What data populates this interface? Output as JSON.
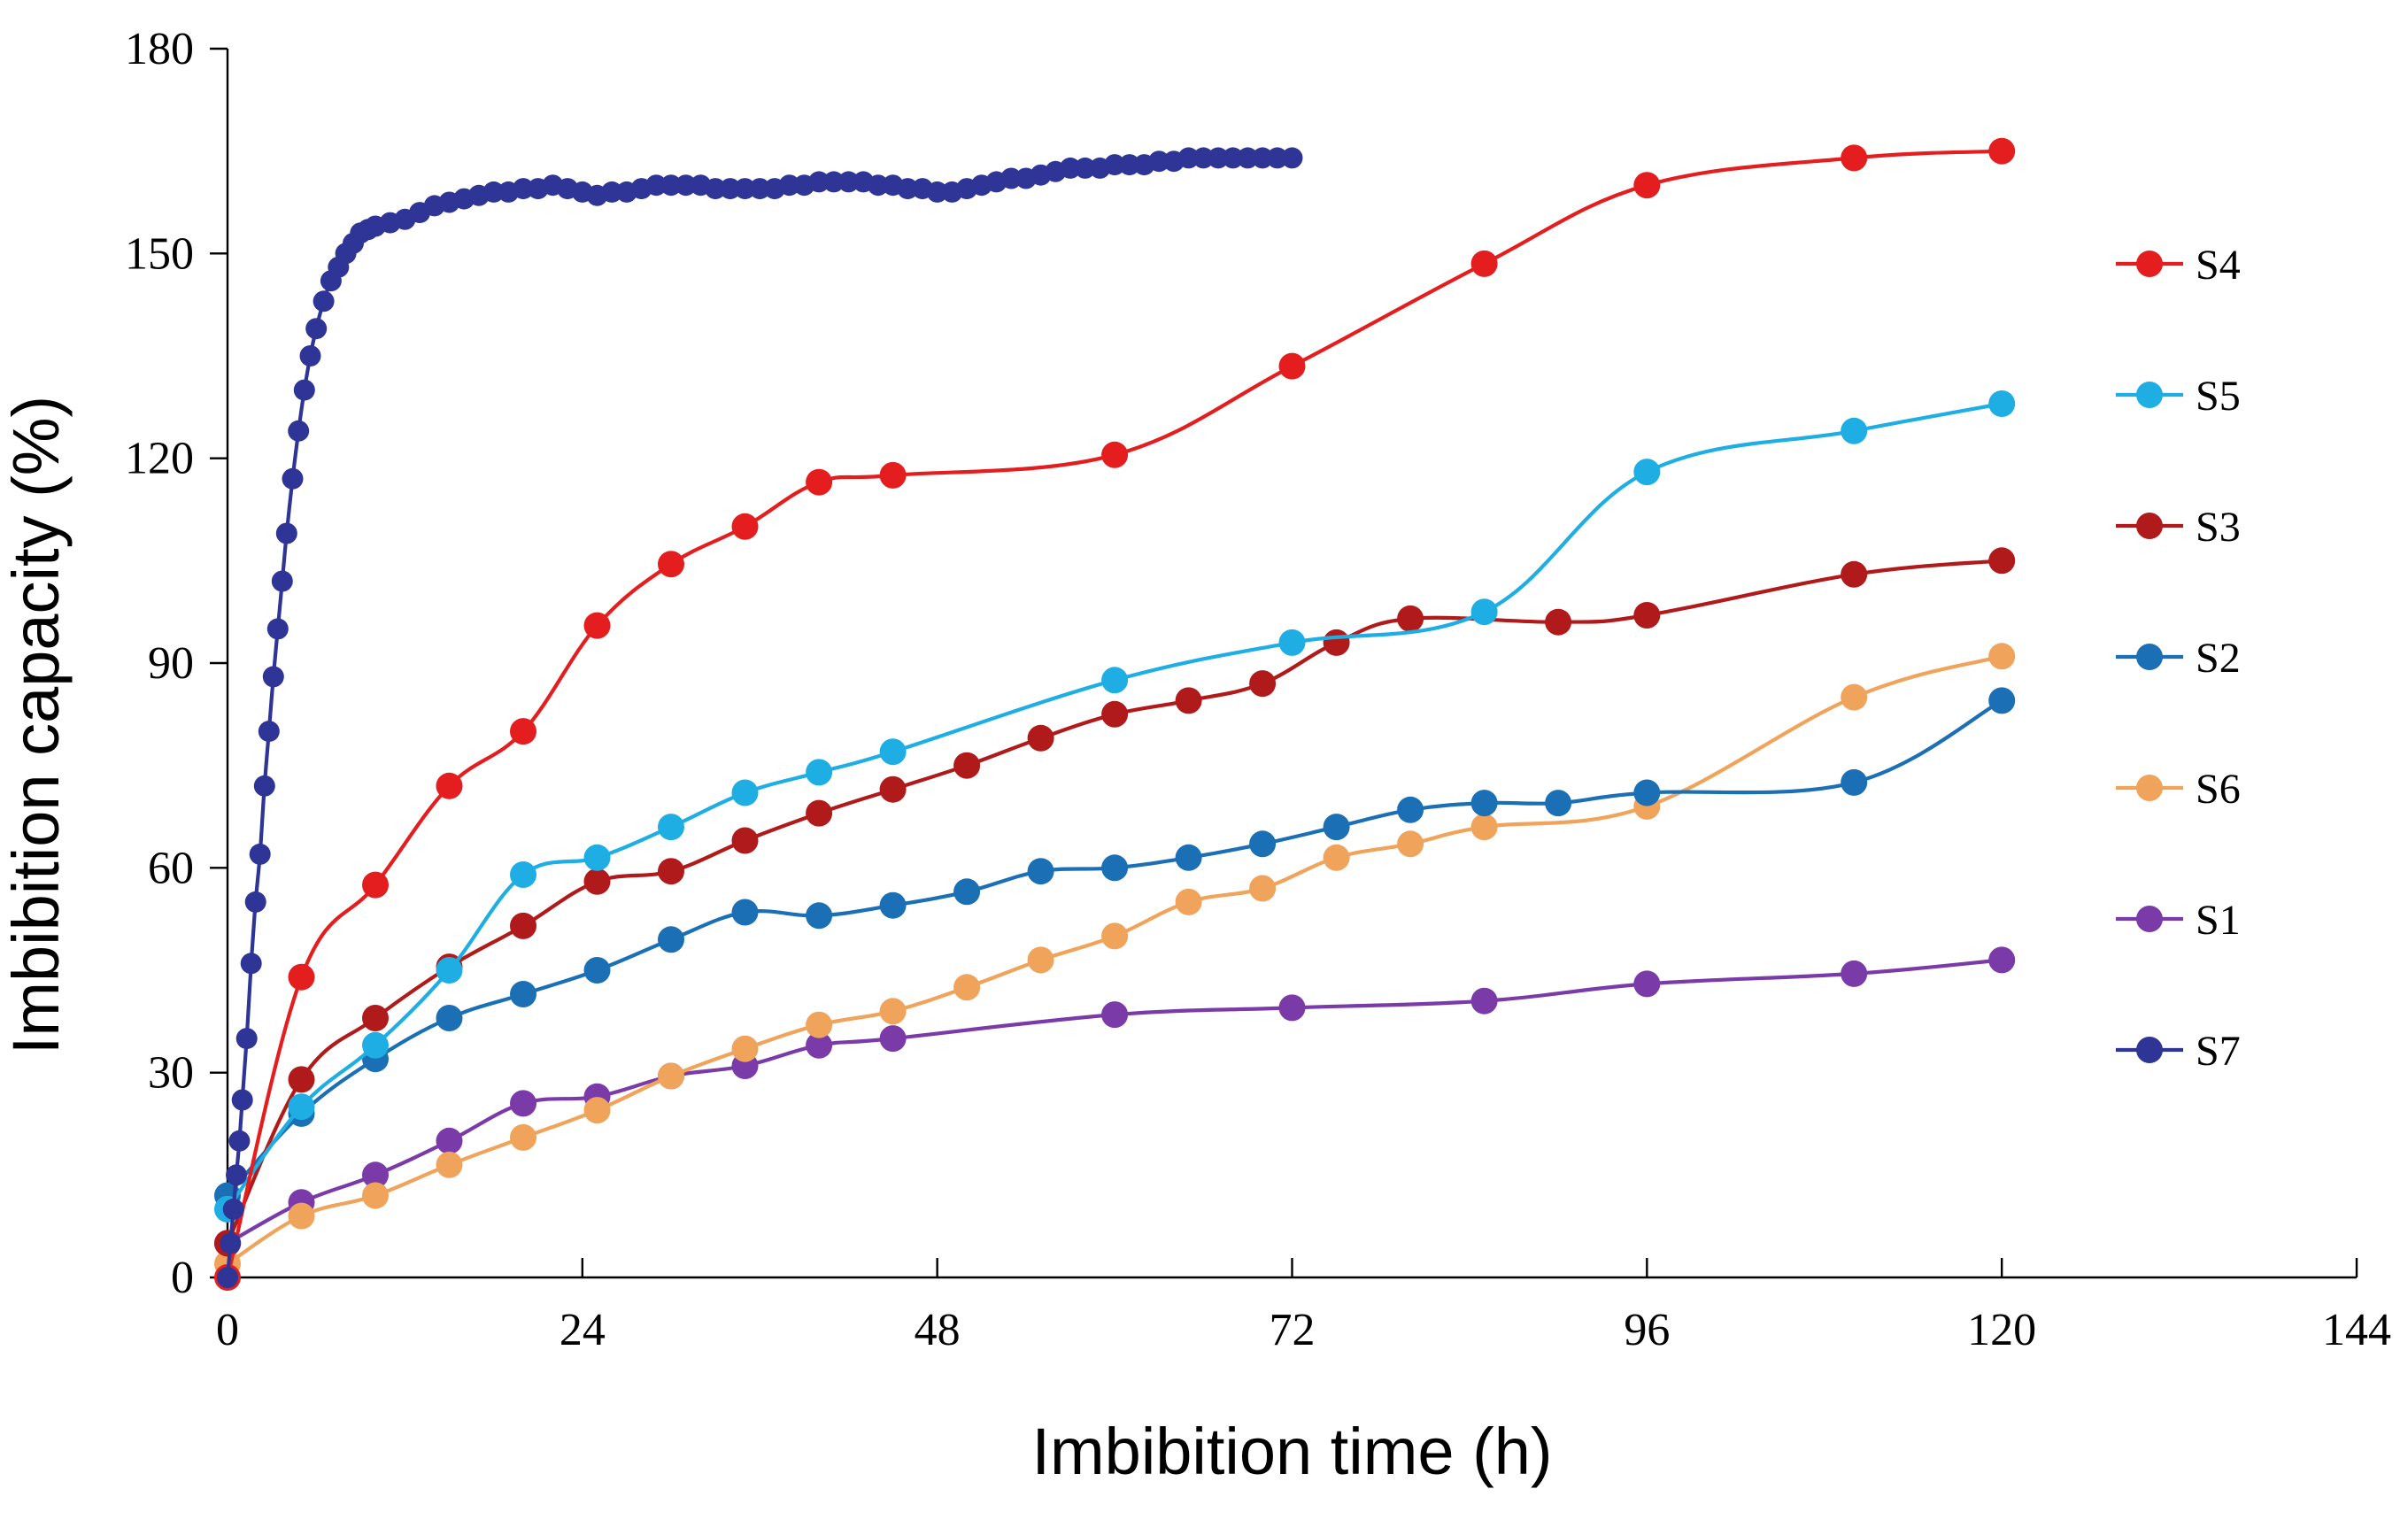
{
  "chart_data": {
    "type": "line",
    "title": "",
    "xlabel": "Imbibition time (h)",
    "ylabel": "Imbibition capacity (%)",
    "xlim": [
      0,
      144
    ],
    "ylim": [
      0,
      180
    ],
    "xticks": [
      0,
      24,
      48,
      72,
      96,
      120,
      144
    ],
    "yticks": [
      0,
      30,
      60,
      90,
      120,
      150,
      180
    ],
    "xtick_labels": [
      "0",
      "24",
      "48",
      "72",
      "96",
      "120",
      "144"
    ],
    "ytick_labels": [
      "0",
      "30",
      "60",
      "90",
      "120",
      "150",
      "180"
    ],
    "legend_position": "right",
    "series": [
      {
        "name": "S4",
        "color": "#E41E1E",
        "x": [
          0,
          5,
          10,
          15,
          20,
          25,
          30,
          35,
          40,
          45,
          60,
          72,
          85,
          96,
          110,
          120
        ],
        "y": [
          0,
          44,
          57.5,
          72,
          80,
          95.5,
          104.5,
          110,
          116.5,
          117.5,
          120.5,
          133.5,
          148.5,
          160,
          164,
          165
        ]
      },
      {
        "name": "S5",
        "color": "#1FAEE3",
        "x": [
          0,
          5,
          10,
          15,
          20,
          25,
          30,
          35,
          40,
          45,
          60,
          72,
          85,
          96,
          110,
          120
        ],
        "y": [
          10,
          25,
          34,
          45,
          59,
          61.5,
          66,
          71,
          74,
          77,
          87.5,
          93,
          97.5,
          118,
          124,
          128
        ]
      },
      {
        "name": "S3",
        "color": "#B01A1A",
        "x": [
          0,
          5,
          10,
          15,
          20,
          25,
          30,
          35,
          40,
          45,
          50,
          55,
          60,
          65,
          70,
          75,
          80,
          90,
          96,
          110,
          120
        ],
        "y": [
          5,
          29,
          38,
          45.5,
          51.5,
          58,
          59.5,
          64,
          68,
          71.5,
          75,
          79,
          82.5,
          84.5,
          87,
          93,
          96.5,
          96,
          97,
          103,
          105
        ]
      },
      {
        "name": "S2",
        "color": "#1A6FB5",
        "x": [
          0,
          5,
          10,
          15,
          20,
          25,
          30,
          35,
          40,
          45,
          50,
          55,
          60,
          65,
          70,
          75,
          80,
          85,
          90,
          96,
          110,
          120
        ],
        "y": [
          12,
          24,
          32,
          38,
          41.5,
          45,
          49.5,
          53.5,
          53,
          54.5,
          56.5,
          59.5,
          60,
          61.5,
          63.5,
          66,
          68.5,
          69.5,
          69.5,
          71,
          72.5,
          84.5
        ]
      },
      {
        "name": "S6",
        "color": "#F0A35A",
        "x": [
          0,
          5,
          10,
          15,
          20,
          25,
          30,
          35,
          40,
          45,
          50,
          55,
          60,
          65,
          70,
          75,
          80,
          85,
          96,
          110,
          120
        ],
        "y": [
          2,
          9,
          12,
          16.5,
          20.5,
          24.5,
          29.5,
          33.5,
          37,
          39,
          42.5,
          46.5,
          50,
          55,
          57,
          61.5,
          63.5,
          66,
          69,
          85,
          91
        ]
      },
      {
        "name": "S1",
        "color": "#7A3BA8",
        "x": [
          0,
          5,
          10,
          15,
          20,
          25,
          30,
          35,
          40,
          45,
          60,
          72,
          85,
          96,
          110,
          120
        ],
        "y": [
          5,
          11,
          15,
          20,
          25.5,
          26.5,
          29.5,
          31,
          34,
          35,
          38.5,
          39.5,
          40.5,
          43,
          44.5,
          46.5
        ]
      },
      {
        "name": "S7",
        "color": "#2E3596",
        "x": [
          0,
          0.2,
          0.4,
          0.6,
          0.8,
          1,
          1.3,
          1.6,
          1.9,
          2.2,
          2.5,
          2.8,
          3.1,
          3.4,
          3.7,
          4,
          4.4,
          4.8,
          5.2,
          5.6,
          6,
          6.5,
          7,
          7.5,
          8,
          8.5,
          9,
          9.5,
          10,
          11,
          12,
          13,
          14,
          15,
          16,
          17,
          18,
          19,
          20,
          21,
          22,
          23,
          24,
          25,
          26,
          27,
          28,
          29,
          30,
          31,
          32,
          33,
          34,
          35,
          36,
          37,
          38,
          39,
          40,
          41,
          42,
          43,
          44,
          45,
          46,
          47,
          48,
          49,
          50,
          51,
          52,
          53,
          54,
          55,
          56,
          57,
          58,
          59,
          60,
          61,
          62,
          63,
          64,
          65,
          66,
          67,
          68,
          69,
          70,
          71,
          72
        ],
        "y": [
          0,
          5,
          10,
          15,
          20,
          26,
          35,
          46,
          55,
          62,
          72,
          80,
          88,
          95,
          102,
          109,
          117,
          124,
          130,
          135,
          139,
          143,
          146,
          148,
          150,
          151.5,
          153,
          153.5,
          154,
          154.5,
          155,
          156,
          157,
          157.5,
          158,
          158.5,
          159,
          159,
          159.5,
          159.5,
          160,
          159.5,
          159,
          158.5,
          159,
          159,
          159.5,
          160,
          160,
          160,
          160,
          159.5,
          159.5,
          159.5,
          159.5,
          159.5,
          160,
          160,
          160.5,
          160.5,
          160.5,
          160.5,
          160,
          160,
          159.5,
          159.5,
          159,
          159,
          159.5,
          160,
          160.5,
          161,
          161,
          161.5,
          162,
          162.5,
          162.5,
          162.5,
          163,
          163,
          163,
          163.5,
          163.5,
          164,
          164,
          164,
          164,
          164,
          164,
          164,
          164
        ]
      }
    ]
  }
}
